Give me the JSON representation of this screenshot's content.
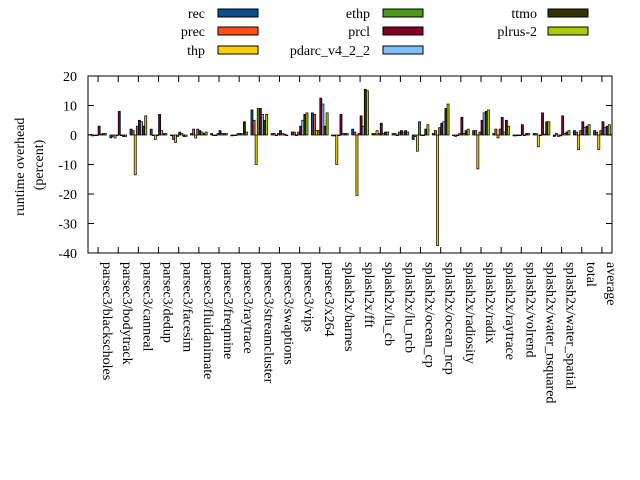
{
  "chart_data": {
    "type": "bar",
    "title": "",
    "xlabel": "",
    "ylabel": "runtime overhead\n(percent)",
    "ylabel_lines": [
      "runtime overhead",
      "(percent)"
    ],
    "ylim": [
      -40,
      20
    ],
    "yticks": [
      20,
      10,
      0,
      -10,
      -20,
      -30,
      -40
    ],
    "grid": false,
    "legend_placement": "top",
    "categories": [
      "parsec3/blackscholes",
      "parsec3/bodytrack",
      "parsec3/canneal",
      "parsec3/dedup",
      "parsec3/facesim",
      "parsec3/fluidanimate",
      "parsec3/freqmine",
      "parsec3/raytrace",
      "parsec3/streamcluster",
      "parsec3/swaptions",
      "parsec3/vips",
      "parsec3/x264",
      "splash2x/barnes",
      "splash2x/fft",
      "splash2x/lu_cb",
      "splash2x/lu_ncb",
      "splash2x/ocean_cp",
      "splash2x/ocean_ncp",
      "splash2x/radiosity",
      "splash2x/radix",
      "splash2x/raytrace",
      "splash2x/volrend",
      "splash2x/water_nsquared",
      "splash2x/water_spatial",
      "total",
      "average"
    ],
    "series": [
      {
        "name": "rec",
        "color": "#0b4f91",
        "values": [
          0.2,
          -1,
          2,
          2,
          0,
          0.5,
          0.5,
          -0.3,
          8.5,
          0.5,
          1,
          7.5,
          -0.3,
          2,
          0.5,
          0.5,
          -1.5,
          0.5,
          0,
          1.5,
          0.5,
          -0.3,
          0.5,
          -0.5,
          1.5,
          1.5
        ]
      },
      {
        "name": "prec",
        "color": "#ff4d1a",
        "values": [
          -0.3,
          -0.5,
          1.5,
          0,
          -1.5,
          2,
          0,
          0,
          5,
          0.5,
          1,
          7,
          -0.3,
          1,
          0.5,
          0.5,
          -0.5,
          1.5,
          -0.5,
          1.5,
          2,
          -0.3,
          0.5,
          0.5,
          1,
          1
        ]
      },
      {
        "name": "thp",
        "color": "#ffcc00",
        "values": [
          0,
          -1,
          -13.5,
          -1.5,
          -2.5,
          -1,
          0,
          0,
          -10,
          0,
          0,
          1.5,
          -10,
          -20.5,
          1.5,
          0,
          -5.5,
          -37.5,
          0,
          -11.5,
          -1,
          0,
          -4,
          -0.5,
          -5,
          -5
        ]
      },
      {
        "name": "ethp",
        "color": "#4a9a1a",
        "values": [
          0,
          0,
          3,
          0,
          -0.5,
          2,
          0.5,
          0.5,
          9,
          0.5,
          1,
          1.5,
          0,
          0.5,
          0.5,
          1,
          4.5,
          2.5,
          0.5,
          1,
          2,
          0,
          0,
          -0.3,
          1.5,
          1.5
        ]
      },
      {
        "name": "prcl",
        "color": "#800026",
        "values": [
          3,
          8,
          5,
          7,
          1,
          1.5,
          1.5,
          0.5,
          9,
          1.5,
          3,
          12.5,
          7,
          6.5,
          4,
          1.5,
          0,
          4,
          6,
          5,
          6,
          3.5,
          7.5,
          6.5,
          4.5,
          4.5
        ]
      },
      {
        "name": "pdarc_v4_2_2",
        "color": "#80c0ff",
        "values": [
          0.3,
          0,
          4.5,
          1.5,
          0.5,
          1,
          0.5,
          0.5,
          7,
          0.5,
          5,
          10.5,
          0.5,
          3,
          0.5,
          1,
          0,
          4.5,
          0.5,
          7.5,
          1,
          0,
          0.3,
          0.5,
          2.5,
          2.5
        ]
      },
      {
        "name": "ttmo",
        "color": "#333300",
        "values": [
          0.5,
          -0.5,
          3,
          0.5,
          -0.5,
          0.5,
          0.5,
          4.5,
          5,
          0.3,
          7,
          3,
          0.5,
          15.5,
          1,
          1.5,
          2,
          9,
          1.5,
          8,
          5,
          0.5,
          4.5,
          1,
          3,
          3
        ]
      },
      {
        "name": "plrus-2",
        "color": "#aacc00",
        "values": [
          0.5,
          -0.5,
          6.5,
          0.5,
          -0.5,
          1,
          0.5,
          1,
          7,
          0,
          7.5,
          7.5,
          0.5,
          15,
          1,
          1,
          3.5,
          10.5,
          2,
          8.5,
          3,
          0.5,
          4.5,
          1.5,
          3.5,
          3.5
        ]
      }
    ]
  }
}
